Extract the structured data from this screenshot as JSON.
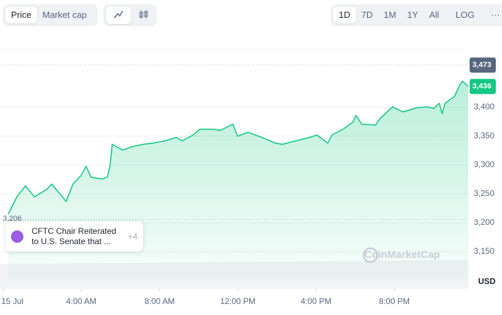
{
  "ui": {
    "tabs": [
      "Price",
      "Market cap"
    ],
    "ranges": [
      "1D",
      "7D",
      "1M",
      "1Y",
      "All",
      "LOG"
    ]
  },
  "news": {
    "text": "CFTC Chair Reiterated to U.S. Senate that ...",
    "count": "+4"
  },
  "watermark": "CoinMarketCap",
  "chart_data": {
    "type": "area",
    "currency": "USD",
    "x": [
      0.26,
      0.72,
      1.14,
      1.6,
      2.23,
      2.48,
      3.01,
      3.22,
      3.57,
      3.99,
      4.24,
      4.49,
      5.05,
      5.33,
      5.47,
      5.58,
      6.11,
      6.6,
      7.16,
      7.66,
      8.29,
      8.85,
      9.17,
      9.7,
      10.05,
      10.76,
      11.11,
      11.74,
      11.99,
      12.52,
      13.22,
      13.92,
      14.28,
      14.98,
      15.68,
      16.04,
      16.6,
      16.81,
      17.38,
      17.87,
      18.04,
      18.33,
      19.03,
      19.28,
      19.91,
      20.44,
      21.14,
      21.67,
      22.02,
      22.3,
      22.45,
      22.59,
      23.08,
      23.36,
      23.5,
      23.78
    ],
    "series": [
      {
        "color": "#16c784",
        "values": [
          3215,
          3246,
          3264,
          3245,
          3258,
          3267,
          3246,
          3237,
          3267,
          3282,
          3298,
          3279,
          3276,
          3279,
          3300,
          3336,
          3326,
          3332,
          3336,
          3338,
          3342,
          3348,
          3342,
          3352,
          3362,
          3362,
          3360,
          3371,
          3350,
          3357,
          3348,
          3338,
          3336,
          3342,
          3348,
          3352,
          3338,
          3352,
          3362,
          3374,
          3386,
          3371,
          3369,
          3381,
          3401,
          3392,
          3399,
          3401,
          3398,
          3407,
          3389,
          3407,
          3419,
          3440,
          3445,
          3436
        ]
      }
    ],
    "xlim": [
      -0.16,
      23.78
    ],
    "xticks": [
      {
        "value": 0,
        "label": "15 Jul"
      },
      {
        "value": 4,
        "label": "4:00 AM"
      },
      {
        "value": 8,
        "label": "8:00 AM"
      },
      {
        "value": 12,
        "label": "12:00 PM"
      },
      {
        "value": 16,
        "label": "4:00 PM"
      },
      {
        "value": 20,
        "label": "8:00 PM"
      }
    ],
    "ylim": [
      3100,
      3500
    ],
    "yticks": [
      {
        "value": 3150,
        "label": "3,150"
      },
      {
        "value": 3200,
        "label": "3,200"
      },
      {
        "value": 3250,
        "label": "3,250"
      },
      {
        "value": 3300,
        "label": "3,300"
      },
      {
        "value": 3350,
        "label": "3,350"
      },
      {
        "value": 3400,
        "label": "3,400"
      }
    ],
    "reference_lines": [
      {
        "value": 3473,
        "label": "3,473"
      },
      {
        "value": 3206,
        "label": "3,206"
      }
    ],
    "current_price": {
      "value": 3436,
      "label": "3,436"
    },
    "grid": true
  }
}
